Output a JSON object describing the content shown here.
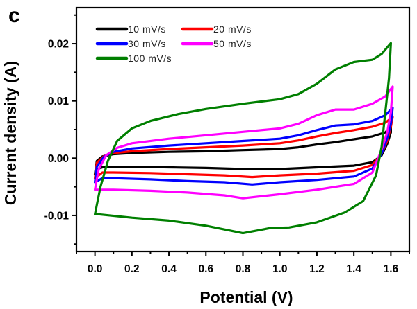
{
  "panel_label": "c",
  "chart_data": {
    "type": "line",
    "title": "",
    "xlabel": "Potential (V)",
    "ylabel": "Current density (A)",
    "xlim": [
      -0.1,
      1.7
    ],
    "ylim": [
      -0.0163,
      0.0263
    ],
    "xticks": [
      0.0,
      0.2,
      0.4,
      0.6,
      0.8,
      1.0,
      1.2,
      1.4,
      1.6
    ],
    "xtick_labels": [
      "0.0",
      "0.2",
      "0.4",
      "0.6",
      "0.8",
      "1.0",
      "1.2",
      "1.4",
      "1.6"
    ],
    "yticks": [
      0.02,
      0.01,
      0.0,
      -0.01
    ],
    "ytick_labels": [
      "0.02",
      "0.01",
      "0.00",
      "-0.01"
    ],
    "x_minor_step": 0.1,
    "y_minor_step": 0.005,
    "grid": false,
    "legend_position": "top-left",
    "series": [
      {
        "name": "10 mV/s",
        "color": "#000000",
        "points": [
          [
            0.0,
            -0.0028
          ],
          [
            0.01,
            -0.0005
          ],
          [
            0.04,
            0.0003
          ],
          [
            0.1,
            0.0007
          ],
          [
            0.2,
            0.0009
          ],
          [
            0.4,
            0.0011
          ],
          [
            0.6,
            0.0012
          ],
          [
            0.8,
            0.0014
          ],
          [
            1.0,
            0.0016
          ],
          [
            1.1,
            0.0019
          ],
          [
            1.2,
            0.0024
          ],
          [
            1.3,
            0.0028
          ],
          [
            1.4,
            0.0033
          ],
          [
            1.5,
            0.0038
          ],
          [
            1.57,
            0.0045
          ],
          [
            1.6,
            0.0055
          ],
          [
            1.6,
            0.0045
          ],
          [
            1.58,
            0.0025
          ],
          [
            1.55,
            0.0005
          ],
          [
            1.5,
            -0.0007
          ],
          [
            1.4,
            -0.0013
          ],
          [
            1.2,
            -0.0016
          ],
          [
            1.0,
            -0.0019
          ],
          [
            0.8,
            -0.0019
          ],
          [
            0.6,
            -0.0017
          ],
          [
            0.4,
            -0.0016
          ],
          [
            0.2,
            -0.0015
          ],
          [
            0.05,
            -0.0015
          ],
          [
            0.02,
            -0.0018
          ],
          [
            0.0,
            -0.0028
          ]
        ]
      },
      {
        "name": "20 mV/s",
        "color": "#ff0000",
        "points": [
          [
            0.0,
            -0.0035
          ],
          [
            0.01,
            -0.0008
          ],
          [
            0.05,
            0.0004
          ],
          [
            0.1,
            0.0009
          ],
          [
            0.2,
            0.0012
          ],
          [
            0.4,
            0.0016
          ],
          [
            0.6,
            0.0019
          ],
          [
            0.8,
            0.0022
          ],
          [
            1.0,
            0.0026
          ],
          [
            1.1,
            0.0031
          ],
          [
            1.2,
            0.0038
          ],
          [
            1.3,
            0.0044
          ],
          [
            1.4,
            0.0049
          ],
          [
            1.5,
            0.0055
          ],
          [
            1.57,
            0.0062
          ],
          [
            1.61,
            0.0072
          ],
          [
            1.6,
            0.0055
          ],
          [
            1.58,
            0.003
          ],
          [
            1.55,
            0.0008
          ],
          [
            1.5,
            -0.0012
          ],
          [
            1.4,
            -0.0022
          ],
          [
            1.2,
            -0.0027
          ],
          [
            1.0,
            -0.003
          ],
          [
            0.85,
            -0.0033
          ],
          [
            0.7,
            -0.003
          ],
          [
            0.5,
            -0.0028
          ],
          [
            0.3,
            -0.0026
          ],
          [
            0.1,
            -0.0025
          ],
          [
            0.04,
            -0.0025
          ],
          [
            0.0,
            -0.0035
          ]
        ]
      },
      {
        "name": "30 mV/s",
        "color": "#0000ff",
        "points": [
          [
            0.0,
            -0.0042
          ],
          [
            0.01,
            -0.0015
          ],
          [
            0.05,
            0.0003
          ],
          [
            0.1,
            0.0011
          ],
          [
            0.2,
            0.0017
          ],
          [
            0.4,
            0.0022
          ],
          [
            0.6,
            0.0026
          ],
          [
            0.8,
            0.003
          ],
          [
            1.0,
            0.0034
          ],
          [
            1.1,
            0.004
          ],
          [
            1.2,
            0.0049
          ],
          [
            1.3,
            0.0057
          ],
          [
            1.4,
            0.0059
          ],
          [
            1.5,
            0.0065
          ],
          [
            1.57,
            0.0075
          ],
          [
            1.61,
            0.0088
          ],
          [
            1.6,
            0.006
          ],
          [
            1.58,
            0.0035
          ],
          [
            1.55,
            0.0008
          ],
          [
            1.5,
            -0.0018
          ],
          [
            1.4,
            -0.0032
          ],
          [
            1.2,
            -0.0038
          ],
          [
            1.0,
            -0.0042
          ],
          [
            0.85,
            -0.0046
          ],
          [
            0.7,
            -0.0042
          ],
          [
            0.5,
            -0.004
          ],
          [
            0.3,
            -0.0037
          ],
          [
            0.1,
            -0.0035
          ],
          [
            0.04,
            -0.0035
          ],
          [
            0.0,
            -0.0042
          ]
        ]
      },
      {
        "name": "50 mV/s",
        "color": "#ff00ff",
        "points": [
          [
            0.0,
            -0.0055
          ],
          [
            0.02,
            -0.002
          ],
          [
            0.06,
            0.0005
          ],
          [
            0.12,
            0.0018
          ],
          [
            0.2,
            0.0026
          ],
          [
            0.4,
            0.0034
          ],
          [
            0.6,
            0.004
          ],
          [
            0.8,
            0.0046
          ],
          [
            1.0,
            0.0052
          ],
          [
            1.1,
            0.006
          ],
          [
            1.2,
            0.0075
          ],
          [
            1.3,
            0.0085
          ],
          [
            1.4,
            0.0085
          ],
          [
            1.5,
            0.0095
          ],
          [
            1.57,
            0.0108
          ],
          [
            1.61,
            0.0125
          ],
          [
            1.6,
            0.008
          ],
          [
            1.58,
            0.0045
          ],
          [
            1.55,
            0.0015
          ],
          [
            1.5,
            -0.0025
          ],
          [
            1.4,
            -0.0045
          ],
          [
            1.2,
            -0.0055
          ],
          [
            1.0,
            -0.0063
          ],
          [
            0.8,
            -0.007
          ],
          [
            0.7,
            -0.0065
          ],
          [
            0.5,
            -0.006
          ],
          [
            0.3,
            -0.0057
          ],
          [
            0.1,
            -0.0055
          ],
          [
            0.03,
            -0.0055
          ],
          [
            0.0,
            -0.0055
          ]
        ]
      },
      {
        "name": "100 mV/s",
        "color": "#007f00",
        "points": [
          [
            0.0,
            -0.0098
          ],
          [
            0.03,
            -0.005
          ],
          [
            0.07,
            -0.0005
          ],
          [
            0.12,
            0.003
          ],
          [
            0.2,
            0.0052
          ],
          [
            0.3,
            0.0065
          ],
          [
            0.45,
            0.0077
          ],
          [
            0.6,
            0.0086
          ],
          [
            0.8,
            0.0095
          ],
          [
            1.0,
            0.0103
          ],
          [
            1.1,
            0.0112
          ],
          [
            1.2,
            0.013
          ],
          [
            1.3,
            0.0155
          ],
          [
            1.4,
            0.0168
          ],
          [
            1.5,
            0.0172
          ],
          [
            1.55,
            0.0182
          ],
          [
            1.6,
            0.0201
          ],
          [
            1.59,
            0.014
          ],
          [
            1.57,
            0.008
          ],
          [
            1.55,
            0.002
          ],
          [
            1.52,
            -0.003
          ],
          [
            1.45,
            -0.0075
          ],
          [
            1.35,
            -0.0095
          ],
          [
            1.2,
            -0.0112
          ],
          [
            1.05,
            -0.0121
          ],
          [
            0.95,
            -0.0122
          ],
          [
            0.8,
            -0.0131
          ],
          [
            0.6,
            -0.0118
          ],
          [
            0.4,
            -0.0109
          ],
          [
            0.2,
            -0.0104
          ],
          [
            0.02,
            -0.0098
          ],
          [
            0.0,
            -0.0098
          ]
        ]
      }
    ]
  }
}
